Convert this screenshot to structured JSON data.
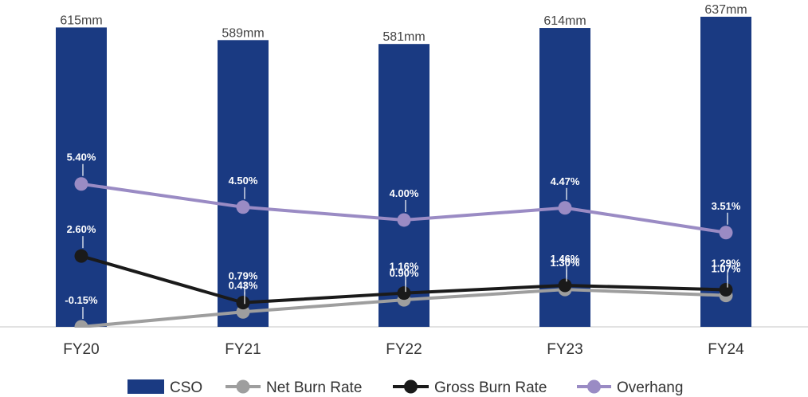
{
  "chart_data": {
    "type": "bar",
    "categories": [
      "FY20",
      "FY21",
      "FY22",
      "FY23",
      "FY24"
    ],
    "bar_series": {
      "name": "CSO",
      "values": [
        615,
        589,
        581,
        614,
        637
      ],
      "labels": [
        "615mm",
        "589mm",
        "581mm",
        "614mm",
        "637mm"
      ],
      "color": "#1a3a82"
    },
    "line_series": [
      {
        "name": "Net Burn Rate",
        "values": [
          -0.15,
          0.43,
          0.9,
          1.3,
          1.07
        ],
        "labels": [
          "-0.15%",
          "0.43%",
          "0.90%",
          "1.30%",
          "1.07%"
        ],
        "color": "#9e9e9e"
      },
      {
        "name": "Gross Burn Rate",
        "values": [
          2.6,
          0.79,
          1.16,
          1.46,
          1.29
        ],
        "labels": [
          "2.60%",
          "0.79%",
          "1.16%",
          "1.46%",
          "1.29%"
        ],
        "color": "#1a1a1a"
      },
      {
        "name": "Overhang",
        "values": [
          5.4,
          4.5,
          4.0,
          4.47,
          3.51
        ],
        "labels": [
          "5.40%",
          "4.50%",
          "4.00%",
          "4.47%",
          "3.51%"
        ],
        "color": "#9a8bc4"
      }
    ],
    "legend": [
      "CSO",
      "Net Burn Rate",
      "Gross Burn Rate",
      "Overhang"
    ],
    "legend_position": "bottom",
    "grid": false
  }
}
